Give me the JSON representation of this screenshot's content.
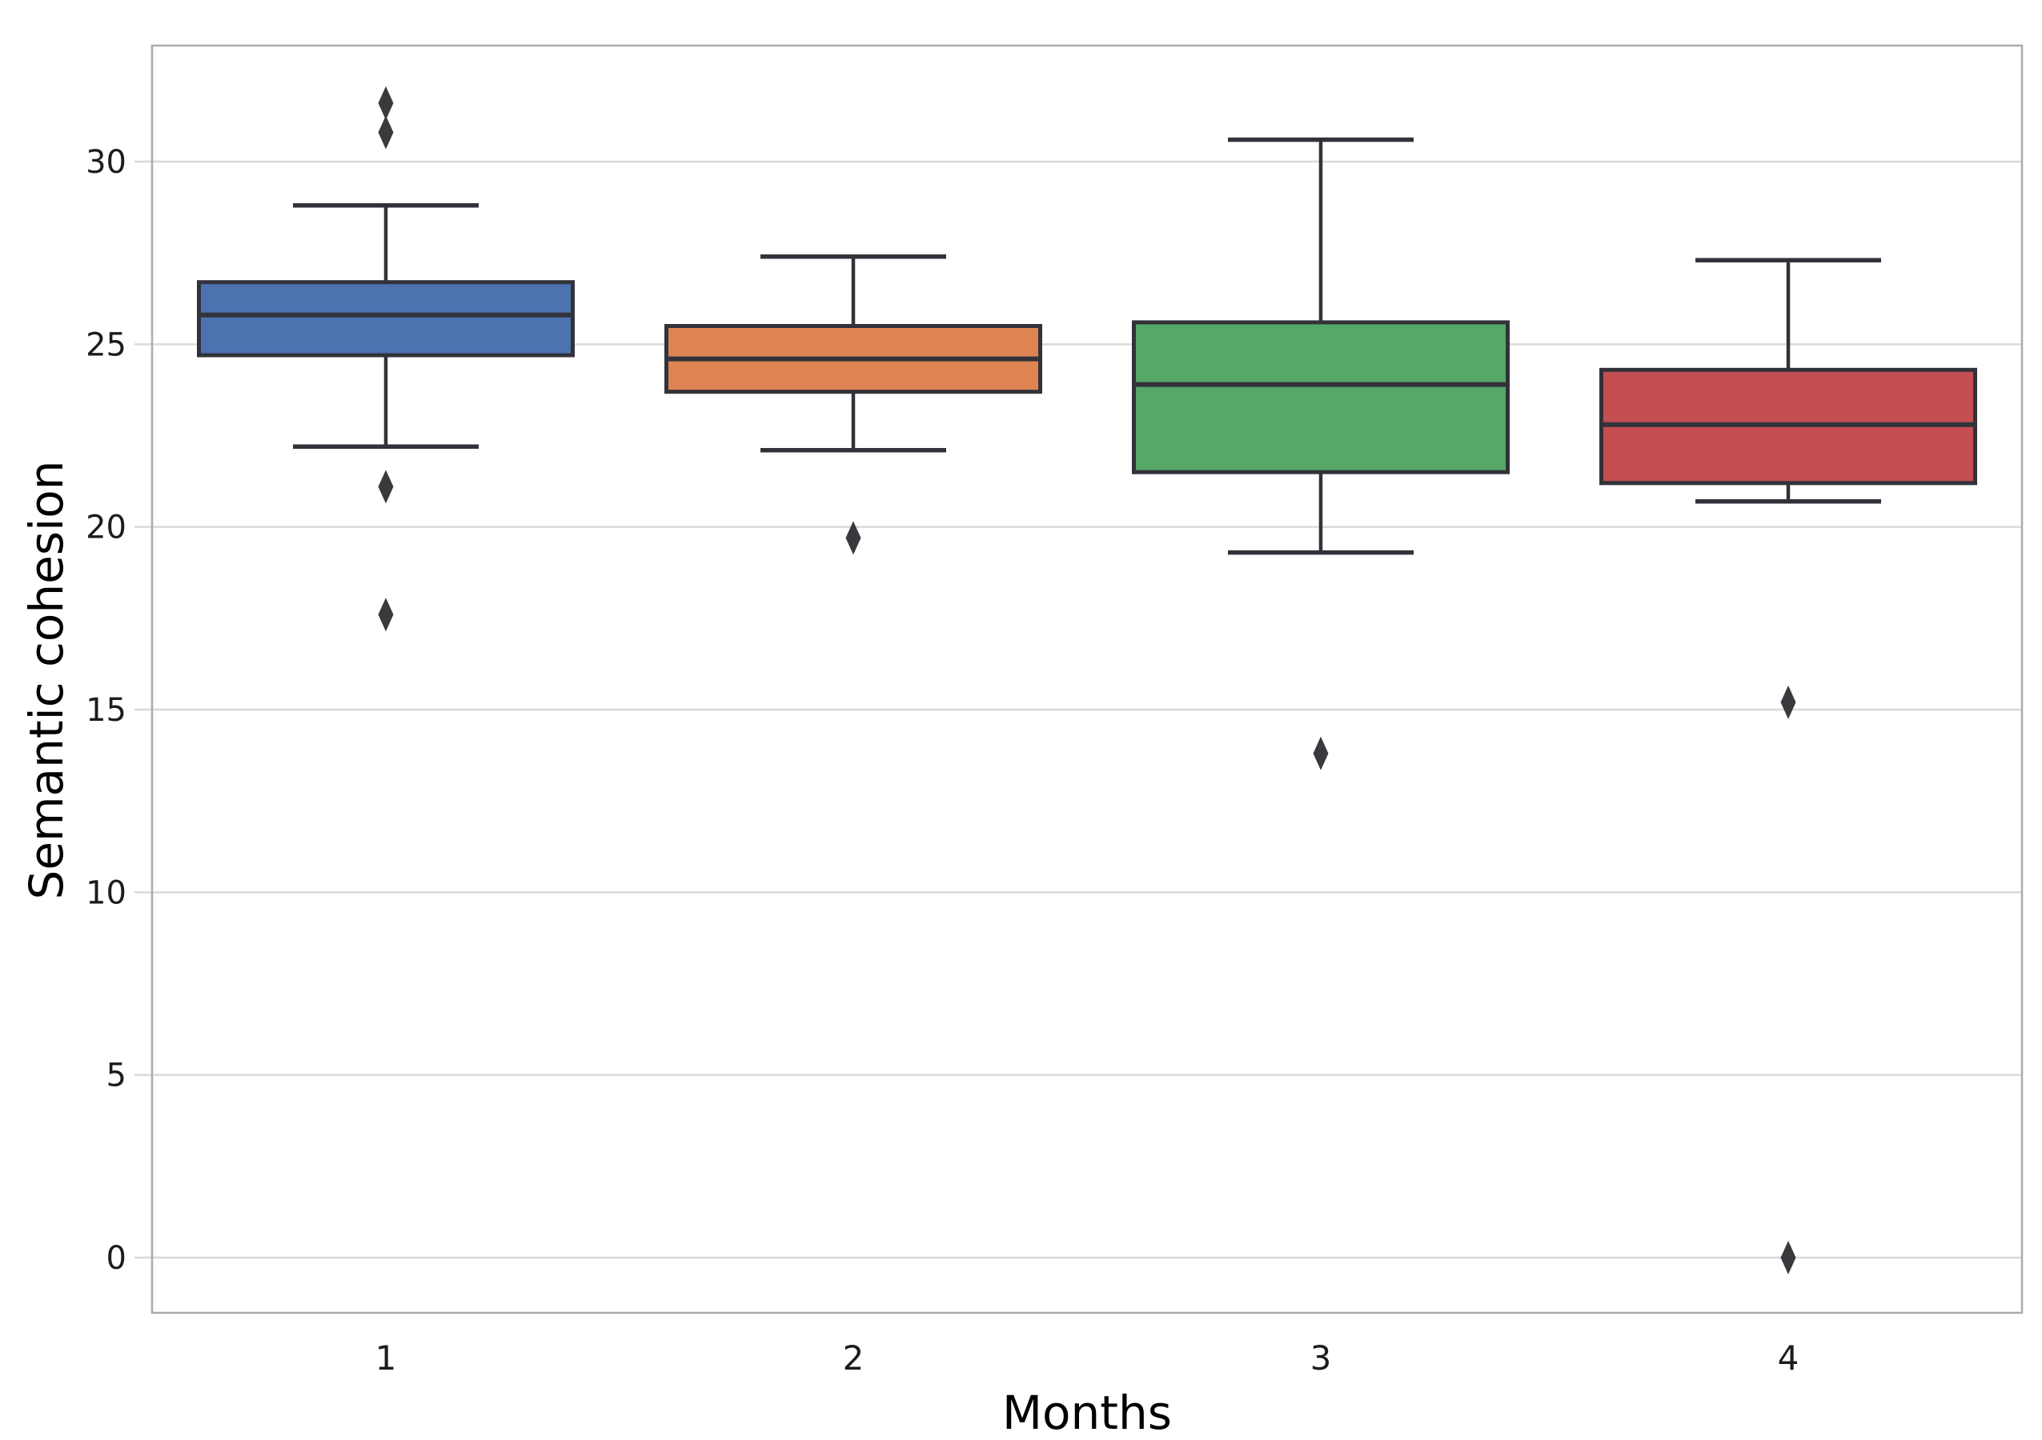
{
  "figure": {
    "background": "#ffffff"
  },
  "chart_data": {
    "type": "box",
    "title": "",
    "xlabel": "Months",
    "ylabel": "Semantic cohesion",
    "categories": [
      "1",
      "2",
      "3",
      "4"
    ],
    "yticks": [
      0,
      5,
      10,
      15,
      20,
      25,
      30
    ],
    "ylim": [
      -1.5,
      33.2
    ],
    "grid": "horizontal-only",
    "legend": "none",
    "series": [
      {
        "name": "1",
        "color": "#4C72B0",
        "whislo": 22.2,
        "q1": 24.7,
        "med": 25.8,
        "q3": 26.7,
        "whishi": 28.8,
        "fliers": [
          31.6,
          30.8,
          21.1,
          17.6
        ]
      },
      {
        "name": "2",
        "color": "#DD8452",
        "whislo": 22.1,
        "q1": 23.7,
        "med": 24.6,
        "q3": 25.5,
        "whishi": 27.4,
        "fliers": [
          19.7
        ]
      },
      {
        "name": "3",
        "color": "#55A868",
        "whislo": 19.3,
        "q1": 21.5,
        "med": 23.9,
        "q3": 25.6,
        "whishi": 30.6,
        "fliers": [
          13.8
        ]
      },
      {
        "name": "4",
        "color": "#C44E52",
        "whislo": 20.7,
        "q1": 21.2,
        "med": 22.8,
        "q3": 24.3,
        "whishi": 27.3,
        "fliers": [
          15.2,
          0.0
        ]
      }
    ],
    "style": {
      "box_edge_color": "#32323a",
      "median_color": "#32323a",
      "whisker_color": "#32323a",
      "flier_color": "#3a3a3e",
      "grid_color": "#d9d9d9",
      "spine_color": "#ababab",
      "tick_text_color": "#1c1c1c",
      "label_text_color": "#000000"
    }
  }
}
